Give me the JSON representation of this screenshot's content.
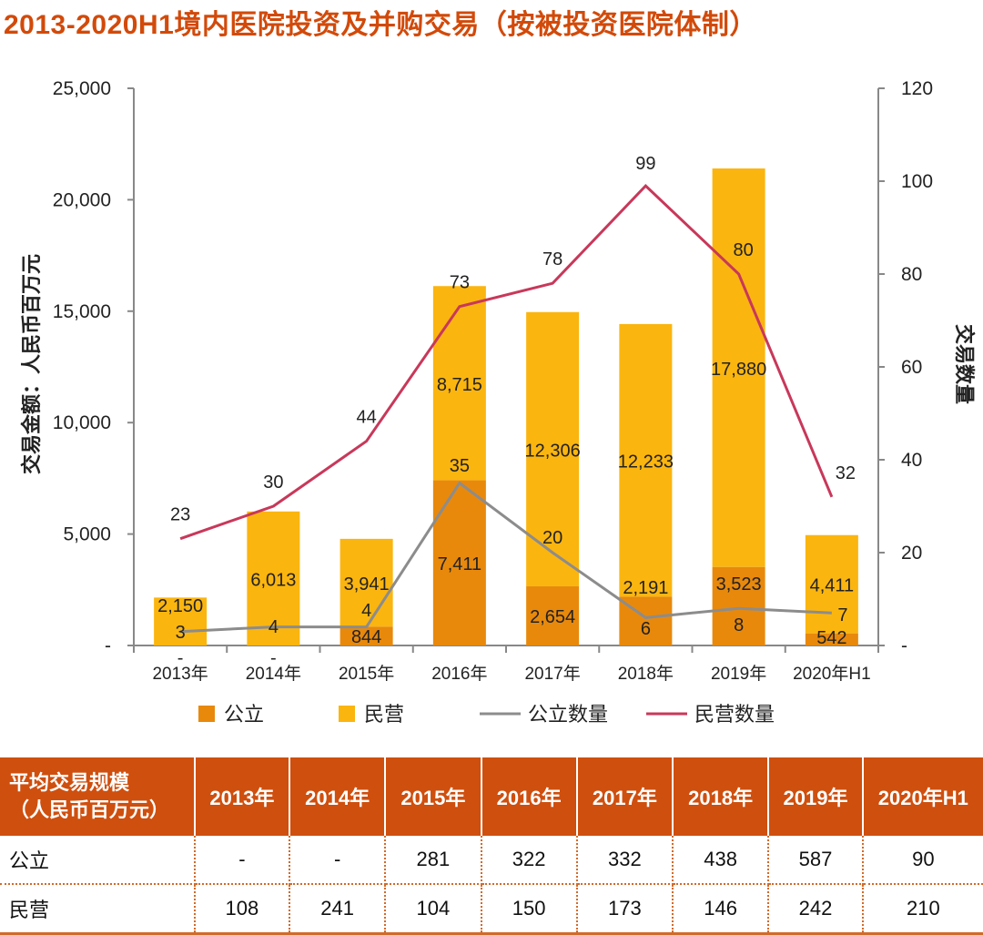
{
  "title": "2013-2020H1境内医院投资及并购交易（按被投资医院体制）",
  "chart_data": {
    "type": "bar+line",
    "categories": [
      "2013年",
      "2014年",
      "2015年",
      "2016年",
      "2017年",
      "2018年",
      "2019年",
      "2020年H1"
    ],
    "ylabel": "交易金额：人民币百万元",
    "y2label": "交易数量",
    "ylim": [
      0,
      25000
    ],
    "y2lim": [
      0,
      120
    ],
    "yticks": [
      "-",
      "5,000",
      "10,000",
      "15,000",
      "20,000",
      "25,000"
    ],
    "y2ticks": [
      "-",
      "20",
      "40",
      "60",
      "80",
      "100",
      "120"
    ],
    "stacked": true,
    "legend_position": "bottom",
    "series": [
      {
        "name": "公立",
        "type": "bar",
        "color": "#e8890c",
        "values": [
          0,
          0,
          844,
          7411,
          2654,
          2191,
          3523,
          542
        ],
        "labels": [
          "-",
          "-",
          "844",
          "7,411",
          "2,654",
          "2,191",
          "3,523",
          "542"
        ]
      },
      {
        "name": "民营",
        "type": "bar",
        "color": "#fbb50f",
        "values": [
          2150,
          6013,
          3941,
          8715,
          12306,
          12233,
          17880,
          4411
        ],
        "labels": [
          "2,150",
          "6,013",
          "3,941",
          "8,715",
          "12,306",
          "12,233",
          "17,880",
          "4,411"
        ]
      },
      {
        "name": "公立数量",
        "type": "line",
        "axis": "right",
        "color": "#8c8c8c",
        "values": [
          3,
          4,
          4,
          35,
          20,
          6,
          8,
          7
        ]
      },
      {
        "name": "民营数量",
        "type": "line",
        "axis": "right",
        "color": "#c8385a",
        "values": [
          23,
          30,
          44,
          73,
          78,
          99,
          80,
          32
        ]
      }
    ]
  },
  "table": {
    "header_line1": "平均交易规模",
    "header_line2": "（人民币百万元）",
    "columns": [
      "2013年",
      "2014年",
      "2015年",
      "2016年",
      "2017年",
      "2018年",
      "2019年",
      "2020年H1"
    ],
    "rows": [
      {
        "label": "公立",
        "values": [
          "-",
          "-",
          "281",
          "322",
          "332",
          "438",
          "587",
          "90"
        ]
      },
      {
        "label": "民营",
        "values": [
          "108",
          "241",
          "104",
          "150",
          "173",
          "146",
          "242",
          "210"
        ]
      }
    ]
  }
}
